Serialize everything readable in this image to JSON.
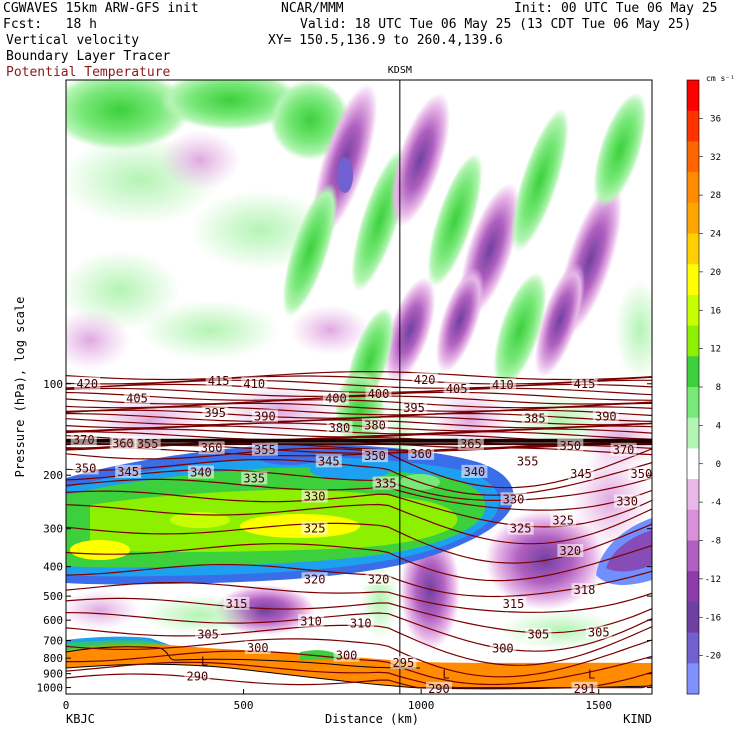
{
  "header": {
    "model": "CGWAVES 15km ARW-GFS init",
    "forecast": "Fcst:   18 h",
    "org": "NCAR/MMM",
    "init": "Init: 00 UTC Tue 06 May 25",
    "valid": "Valid: 18 UTC Tue 06 May 25 (13 CDT Tue 06 May 25)",
    "xy": "XY= 150.5,136.9 to 260.4,139.6",
    "fields": [
      "Vertical velocity",
      "Boundary Layer Tracer",
      "Potential Temperature"
    ]
  },
  "chart_data": {
    "type": "heatmap",
    "xlabel": "Distance (km)",
    "ylabel": "Pressure (hPa), log scale",
    "xlim": [
      0,
      1650
    ],
    "ylim": [
      1050,
      10
    ],
    "y_scale": "log",
    "x_ticks": [
      0,
      500,
      1000,
      1500
    ],
    "y_ticks": [
      100,
      200,
      300,
      400,
      500,
      600,
      700,
      800,
      900,
      1000
    ],
    "left_station": "KBJC",
    "right_station": "KIND",
    "mid_station": "KDSM",
    "mid_station_km": 940,
    "colorbar": {
      "unit": "cm s⁻¹",
      "ticks": [
        36,
        32,
        28,
        24,
        20,
        16,
        12,
        8,
        4,
        0,
        -4,
        -8,
        -12,
        -16,
        -20
      ],
      "colors": [
        "#ff0000",
        "#ff3300",
        "#ff6600",
        "#ff8c00",
        "#ffa500",
        "#ffd000",
        "#ffff00",
        "#c8ff00",
        "#8cf000",
        "#3cd03c",
        "#78e878",
        "#b4f4b4",
        "#ffffff",
        "#e8b8e8",
        "#d890d8",
        "#b060c0",
        "#8c3ca8",
        "#7040a0",
        "#7060d0",
        "#8090ff"
      ]
    },
    "isentrope_labels": [
      {
        "v": "420",
        "x": 60,
        "p": 100
      },
      {
        "v": "415",
        "x": 430,
        "p": 98
      },
      {
        "v": "410",
        "x": 530,
        "p": 100
      },
      {
        "v": "405",
        "x": 200,
        "p": 112
      },
      {
        "v": "395",
        "x": 420,
        "p": 125
      },
      {
        "v": "390",
        "x": 560,
        "p": 128
      },
      {
        "v": "400",
        "x": 760,
        "p": 112
      },
      {
        "v": "400",
        "x": 880,
        "p": 108
      },
      {
        "v": "380",
        "x": 770,
        "p": 140
      },
      {
        "v": "380",
        "x": 870,
        "p": 137
      },
      {
        "v": "420",
        "x": 1010,
        "p": 97
      },
      {
        "v": "395",
        "x": 980,
        "p": 120
      },
      {
        "v": "405",
        "x": 1100,
        "p": 104
      },
      {
        "v": "410",
        "x": 1230,
        "p": 101
      },
      {
        "v": "415",
        "x": 1460,
        "p": 100
      },
      {
        "v": "385",
        "x": 1320,
        "p": 130
      },
      {
        "v": "390",
        "x": 1520,
        "p": 128
      },
      {
        "v": "370",
        "x": 50,
        "p": 153
      },
      {
        "v": "365",
        "x": 165,
        "p": 157
      },
      {
        "v": "360",
        "x": 160,
        "p": 157
      },
      {
        "v": "355",
        "x": 230,
        "p": 158
      },
      {
        "v": "360",
        "x": 410,
        "p": 163
      },
      {
        "v": "355",
        "x": 560,
        "p": 165
      },
      {
        "v": "350",
        "x": 55,
        "p": 190
      },
      {
        "v": "345",
        "x": 175,
        "p": 195
      },
      {
        "v": "340",
        "x": 380,
        "p": 196
      },
      {
        "v": "335",
        "x": 530,
        "p": 205
      },
      {
        "v": "345",
        "x": 740,
        "p": 180
      },
      {
        "v": "350",
        "x": 870,
        "p": 173
      },
      {
        "v": "360",
        "x": 1000,
        "p": 170
      },
      {
        "v": "365",
        "x": 1140,
        "p": 158
      },
      {
        "v": "355",
        "x": 1300,
        "p": 180
      },
      {
        "v": "350",
        "x": 1420,
        "p": 160
      },
      {
        "v": "370",
        "x": 1570,
        "p": 165
      },
      {
        "v": "340",
        "x": 1150,
        "p": 195
      },
      {
        "v": "345",
        "x": 1450,
        "p": 198
      },
      {
        "v": "350",
        "x": 1620,
        "p": 198
      },
      {
        "v": "330",
        "x": 700,
        "p": 235
      },
      {
        "v": "335",
        "x": 900,
        "p": 213
      },
      {
        "v": "330",
        "x": 1260,
        "p": 240
      },
      {
        "v": "330",
        "x": 1580,
        "p": 244
      },
      {
        "v": "325",
        "x": 700,
        "p": 300
      },
      {
        "v": "325",
        "x": 1280,
        "p": 300
      },
      {
        "v": "325",
        "x": 1400,
        "p": 282
      },
      {
        "v": "320",
        "x": 700,
        "p": 440
      },
      {
        "v": "320",
        "x": 880,
        "p": 440
      },
      {
        "v": "320",
        "x": 1420,
        "p": 355
      },
      {
        "v": "315",
        "x": 480,
        "p": 530
      },
      {
        "v": "315",
        "x": 1260,
        "p": 530
      },
      {
        "v": "318",
        "x": 1460,
        "p": 478
      },
      {
        "v": "310",
        "x": 690,
        "p": 605
      },
      {
        "v": "310",
        "x": 830,
        "p": 615
      },
      {
        "v": "305",
        "x": 400,
        "p": 670
      },
      {
        "v": "305",
        "x": 1330,
        "p": 670
      },
      {
        "v": "305",
        "x": 1500,
        "p": 660
      },
      {
        "v": "300",
        "x": 540,
        "p": 740
      },
      {
        "v": "300",
        "x": 790,
        "p": 785
      },
      {
        "v": "300",
        "x": 1230,
        "p": 745
      },
      {
        "v": "295",
        "x": 950,
        "p": 830
      },
      {
        "v": "290",
        "x": 370,
        "p": 920
      },
      {
        "v": "290",
        "x": 1050,
        "p": 1010
      },
      {
        "v": "291",
        "x": 1460,
        "p": 1010
      }
    ],
    "low_markers": [
      {
        "v": "L",
        "x": 390,
        "p": 820
      },
      {
        "v": "L",
        "x": 1070,
        "p": 905
      },
      {
        "v": "L",
        "x": 1480,
        "p": 905
      }
    ]
  }
}
